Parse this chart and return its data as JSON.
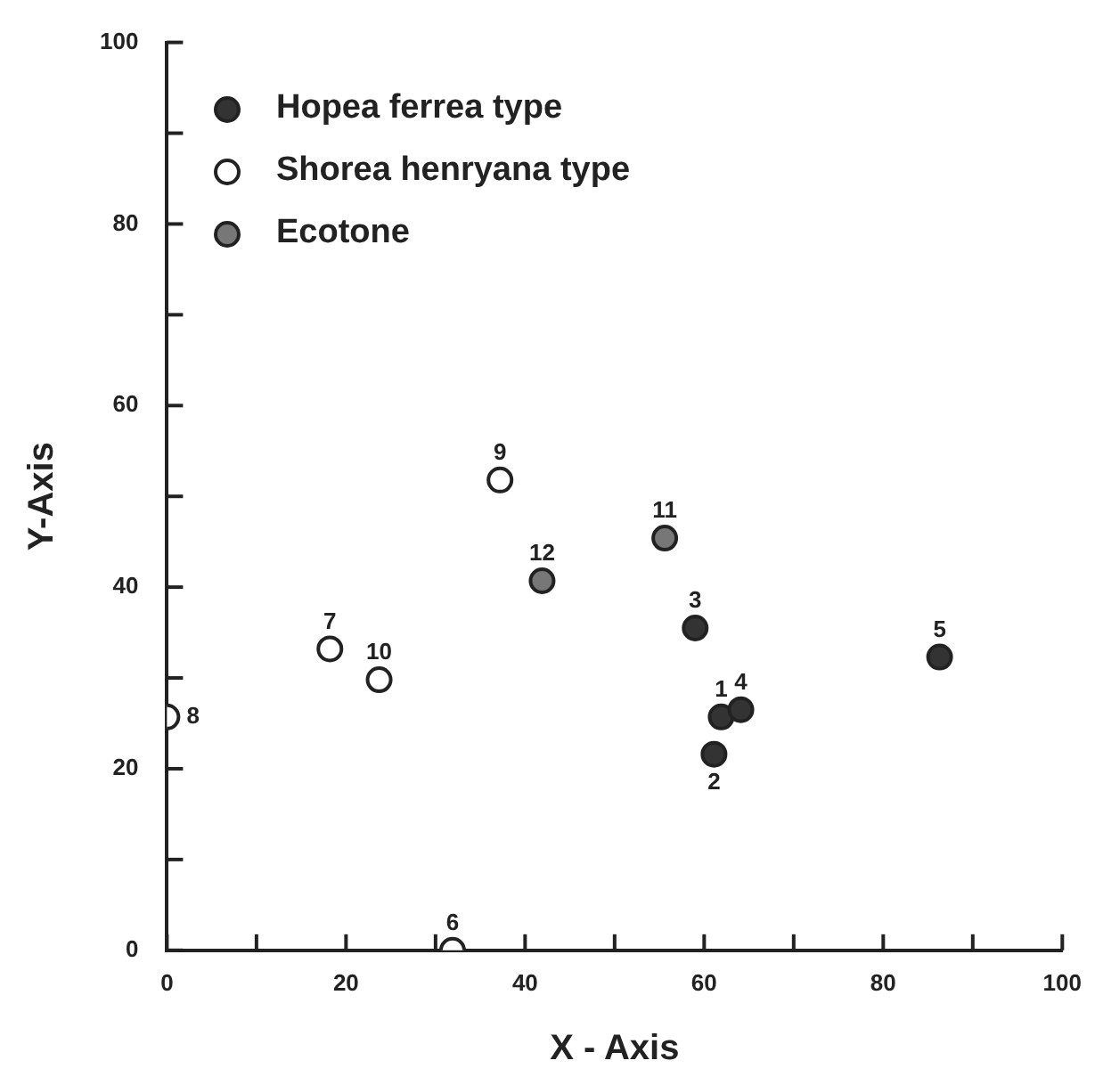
{
  "chart_data": {
    "type": "scatter",
    "xlabel": "X - Axis",
    "ylabel": "Y-Axis",
    "xlim": [
      0,
      100
    ],
    "ylim": [
      0,
      100
    ],
    "xticks": [
      0,
      {
        "value": 10,
        "label": null
      },
      20,
      {
        "value": 30,
        "label": null
      },
      40,
      {
        "value": 50,
        "label": null
      },
      60,
      {
        "value": 70,
        "label": null
      },
      80,
      {
        "value": 90,
        "label": null
      },
      100
    ],
    "yticks": [
      0,
      {
        "value": 10,
        "label": null
      },
      20,
      {
        "value": 30,
        "label": null
      },
      40,
      {
        "value": 50,
        "label": null
      },
      60,
      {
        "value": 70,
        "label": null
      },
      80,
      {
        "value": 90,
        "label": null
      },
      100
    ],
    "grid": false,
    "legend": "top left",
    "marker": "circle",
    "series": [
      {
        "name": "Hopea ferrea type",
        "color": "#333333",
        "x": [
          61.9,
          61.1,
          59.0,
          64.1,
          86.3
        ],
        "values": [
          25.7,
          21.6,
          35.5,
          26.5,
          32.3
        ]
      },
      {
        "name": "Shorea henryana type",
        "color": "#ffffff",
        "x": [
          31.9,
          18.2,
          0,
          37.2,
          23.7
        ],
        "values": [
          0,
          33.2,
          25.7,
          51.8,
          29.8
        ]
      },
      {
        "name": "Ecotone",
        "color": "#777777",
        "x": [
          55.6,
          41.9
        ],
        "values": [
          45.4,
          40.7
        ]
      }
    ],
    "annotations": [
      {
        "text": "1",
        "x": 61.9,
        "y": 25.7
      },
      {
        "text": "2",
        "x": 61.1,
        "y": 21.6
      },
      {
        "text": "3",
        "x": 59.0,
        "y": 35.5
      },
      {
        "text": "4",
        "x": 64.1,
        "y": 26.5
      },
      {
        "text": "5",
        "x": 86.3,
        "y": 32.3
      },
      {
        "text": "6",
        "x": 31.9,
        "y": 0
      },
      {
        "text": "7",
        "x": 18.2,
        "y": 33.2
      },
      {
        "text": "8",
        "x": 0,
        "y": 25.7
      },
      {
        "text": "9",
        "x": 37.2,
        "y": 51.8
      },
      {
        "text": "10",
        "x": 23.7,
        "y": 29.8
      },
      {
        "text": "11",
        "x": 55.6,
        "y": 45.4
      },
      {
        "text": "12",
        "x": 41.9,
        "y": 40.7
      }
    ]
  }
}
